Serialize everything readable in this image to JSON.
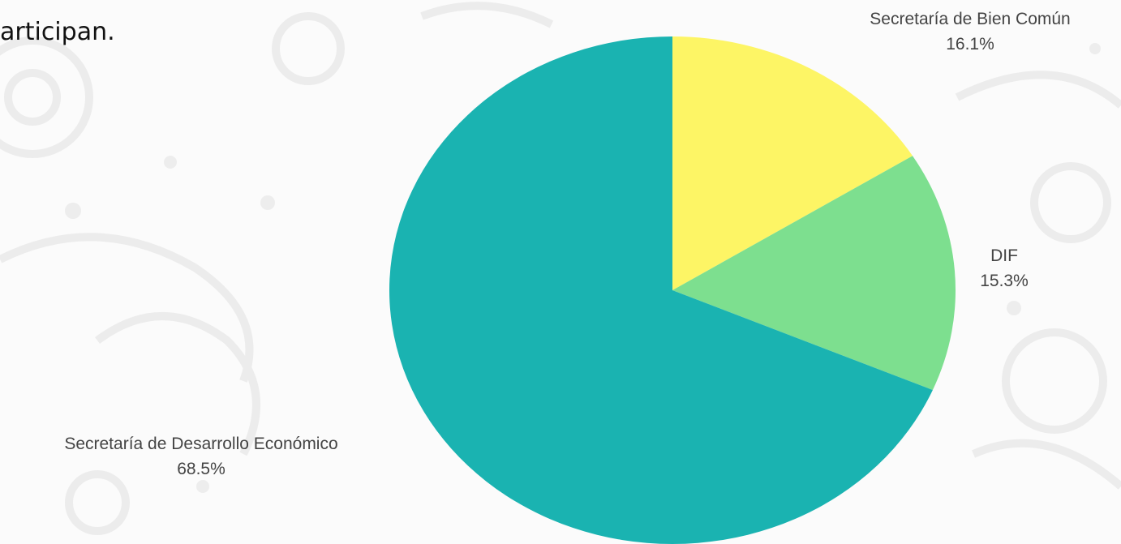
{
  "header": {
    "text": "articipan."
  },
  "chart_data": {
    "type": "pie",
    "slices": [
      {
        "label": "Secretaría de Bien Común",
        "value": 16.1,
        "value_label": "16.1%",
        "color": "#fdf565"
      },
      {
        "label": "DIF",
        "value": 15.3,
        "value_label": "15.3%",
        "color": "#7ddf8f"
      },
      {
        "label": "Secretaría de Desarrollo Económico",
        "value": 68.5,
        "value_label": "68.5%",
        "color": "#1ab3b1"
      }
    ],
    "start_angle": "12 o'clock",
    "direction": "clockwise"
  }
}
